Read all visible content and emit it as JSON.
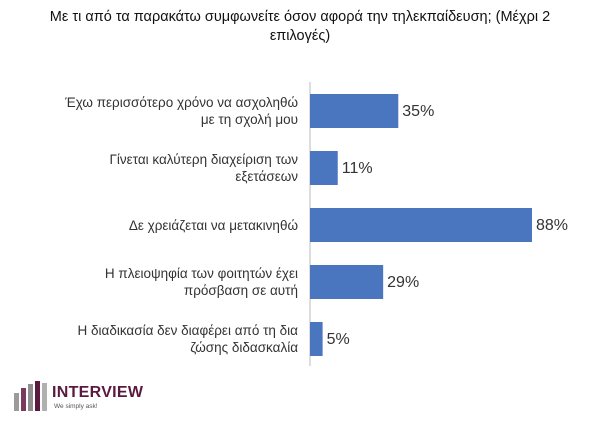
{
  "chart_data": {
    "type": "bar",
    "orientation": "horizontal",
    "title": "Με τι από τα παρακάτω συμφωνείτε όσον αφορά την τηλεκπαίδευση; (Μέχρι 2 επιλογές)",
    "categories": [
      "Έχω περισσότερο χρόνο να ασχοληθώ με τη σχολή μου",
      "Γίνεται καλύτερη διαχείριση των εξετάσεων",
      "Δε χρειάζεται να μετακινηθώ",
      "Η πλειοψηφία των φοιτητών έχει πρόσβαση σε αυτή",
      "Η διαδικασία δεν διαφέρει από τη δια ζώσης διδασκαλία"
    ],
    "values": [
      35,
      11,
      88,
      29,
      5
    ],
    "value_labels": [
      "35%",
      "11%",
      "88%",
      "29%",
      "5%"
    ],
    "color": "#4a76c0"
  },
  "logo": {
    "name": "INTERVIEW",
    "tagline": "We simply ask!"
  }
}
